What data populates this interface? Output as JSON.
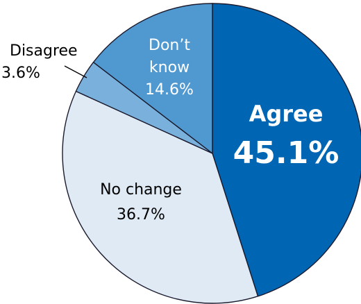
{
  "chart_data": {
    "type": "pie",
    "slices": [
      {
        "label": "Agree",
        "value": 45.1,
        "value_text": "45.1%",
        "color": "#0066b3",
        "text_color": "#ffffff"
      },
      {
        "label": "No change",
        "value": 36.7,
        "value_text": "36.7%",
        "color": "#dfeaf5",
        "text_color": "#000000"
      },
      {
        "label": "Disagree",
        "value": 3.6,
        "value_text": "3.6%",
        "color": "#7ab1dc",
        "text_color": "#000000"
      },
      {
        "label_line1": "Don’t",
        "label_line2": "know",
        "value": 14.6,
        "value_text": "14.6%",
        "color": "#4f98d0",
        "text_color": "#ffffff"
      }
    ],
    "outline_color": "#1a1a2e",
    "start": "12 o'clock",
    "direction": "clockwise"
  }
}
